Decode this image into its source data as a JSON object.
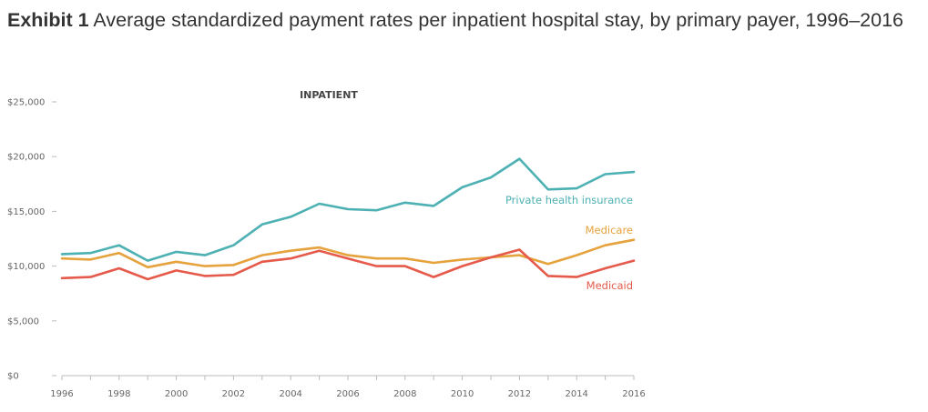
{
  "exhibit": {
    "label": "Exhibit 1",
    "title": "Average standardized payment rates per inpatient hospital stay, by primary payer, 1996–2016"
  },
  "chart_data": {
    "type": "line",
    "title": "INPATIENT",
    "xlabel": "",
    "ylabel": "",
    "x": [
      1996,
      1997,
      1998,
      1999,
      2000,
      2001,
      2002,
      2003,
      2004,
      2005,
      2006,
      2007,
      2008,
      2009,
      2010,
      2011,
      2012,
      2013,
      2014,
      2015,
      2016
    ],
    "xticks": [
      "1996",
      "1998",
      "2000",
      "2002",
      "2004",
      "2006",
      "2008",
      "2010",
      "2012",
      "2014",
      "2016"
    ],
    "yticks": [
      "$0",
      "$5,000",
      "$10,000",
      "$15,000",
      "$20,000",
      "$25,000"
    ],
    "ylim": [
      0,
      25000
    ],
    "grid": false,
    "series": [
      {
        "name": "Private health insurance",
        "color": "#4db1b3",
        "values": [
          11100,
          11200,
          11900,
          10500,
          11300,
          11000,
          11900,
          13800,
          14500,
          15700,
          15200,
          15100,
          15800,
          15500,
          17200,
          18100,
          19800,
          17000,
          17100,
          18400,
          18600
        ]
      },
      {
        "name": "Medicare",
        "color": "#e6a23c",
        "values": [
          10700,
          10600,
          11200,
          9900,
          10400,
          10000,
          10100,
          11000,
          11400,
          11700,
          11000,
          10700,
          10700,
          10300,
          10600,
          10800,
          11000,
          10200,
          11000,
          11900,
          12400
        ]
      },
      {
        "name": "Medicaid",
        "color": "#e55a4a",
        "values": [
          8900,
          9000,
          9800,
          8800,
          9600,
          9100,
          9200,
          10400,
          10700,
          11400,
          10700,
          10000,
          10000,
          9000,
          10000,
          10800,
          11500,
          9100,
          9000,
          9800,
          10500
        ]
      }
    ]
  }
}
